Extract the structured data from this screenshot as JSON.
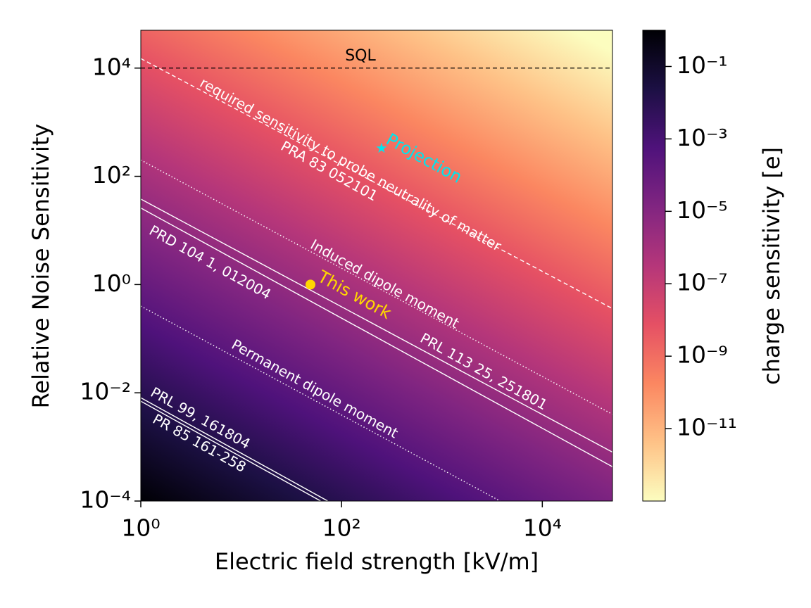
{
  "chart_data": {
    "type": "heatmap",
    "xlabel": "Electric field strength [kV/m]",
    "ylabel": "Relative Noise Sensitivity",
    "colorbar_label": "charge sensitivity [e]",
    "xscale": "log",
    "yscale": "log",
    "cscale": "log",
    "colormap": "magma_r",
    "xlim": [
      1,
      50000
    ],
    "ylim": [
      0.0001,
      50000
    ],
    "clim": [
      1e-13,
      1
    ],
    "xticks": [
      {
        "value": 1,
        "label": "10⁰"
      },
      {
        "value": 100,
        "label": "10²"
      },
      {
        "value": 10000,
        "label": "10⁴"
      }
    ],
    "yticks": [
      {
        "value": 0.0001,
        "label": "10⁻⁴"
      },
      {
        "value": 0.01,
        "label": "10⁻²"
      },
      {
        "value": 1,
        "label": "10⁰"
      },
      {
        "value": 100,
        "label": "10²"
      },
      {
        "value": 10000,
        "label": "10⁴"
      }
    ],
    "cticks": [
      {
        "value": 1e-11,
        "label": "10⁻¹¹"
      },
      {
        "value": 1e-09,
        "label": "10⁻⁹"
      },
      {
        "value": 1e-07,
        "label": "10⁻⁷"
      },
      {
        "value": 1e-05,
        "label": "10⁻⁵"
      },
      {
        "value": 0.001,
        "label": "10⁻³"
      },
      {
        "value": 0.1,
        "label": "10⁻¹"
      }
    ],
    "lines": [
      {
        "x": [
          1,
          50000
        ],
        "y": [
          10000,
          10000
        ],
        "color": "#000000",
        "style": "dashed"
      },
      {
        "x": [
          1,
          50000
        ],
        "y": [
          15000,
          0.36
        ],
        "color": "#ffffff",
        "style": "dashed"
      },
      {
        "x": [
          1,
          50000
        ],
        "y": [
          200,
          0.004
        ],
        "color": "#ffffff",
        "style": "dotted"
      },
      {
        "x": [
          1,
          50000
        ],
        "y": [
          38,
          0.0008
        ],
        "color": "#ffffff",
        "style": "solid"
      },
      {
        "x": [
          1,
          50000
        ],
        "y": [
          26,
          0.00043
        ],
        "color": "#ffffff",
        "style": "solid"
      },
      {
        "x": [
          1,
          3800
        ],
        "y": [
          0.4,
          0.0001
        ],
        "color": "#ffffff",
        "style": "dotted"
      },
      {
        "x": [
          1,
          73
        ],
        "y": [
          0.0081,
          0.0001
        ],
        "color": "#ffffff",
        "style": "solid"
      },
      {
        "x": [
          1,
          62
        ],
        "y": [
          0.007,
          0.0001
        ],
        "color": "#ffffff",
        "style": "solid"
      }
    ],
    "points": [
      {
        "x": 250,
        "y": 330,
        "color": "#00e5ee",
        "marker": "star"
      },
      {
        "x": 49,
        "y": 1,
        "color": "#ffd700",
        "marker": "circle"
      }
    ],
    "annotations": [
      {
        "text": "SQL",
        "color": "#000000"
      },
      {
        "text": "required sensitivity to probe neutrality of matter",
        "color": "#ffffff"
      },
      {
        "text": "PRA 83 052101",
        "color": "#ffffff"
      },
      {
        "text": "Projection",
        "color": "#00e5ee"
      },
      {
        "text": "Induced dipole moment",
        "color": "#ffffff"
      },
      {
        "text": "PRD 104 1, 012004",
        "color": "#ffffff"
      },
      {
        "text": "This work",
        "color": "#ffd700"
      },
      {
        "text": "PRL 113 25, 251801",
        "color": "#ffffff"
      },
      {
        "text": "Permanent dipole moment",
        "color": "#ffffff"
      },
      {
        "text": "PRL 99, 161804",
        "color": "#ffffff"
      },
      {
        "text": "PR 85 161-258",
        "color": "#ffffff"
      }
    ]
  }
}
